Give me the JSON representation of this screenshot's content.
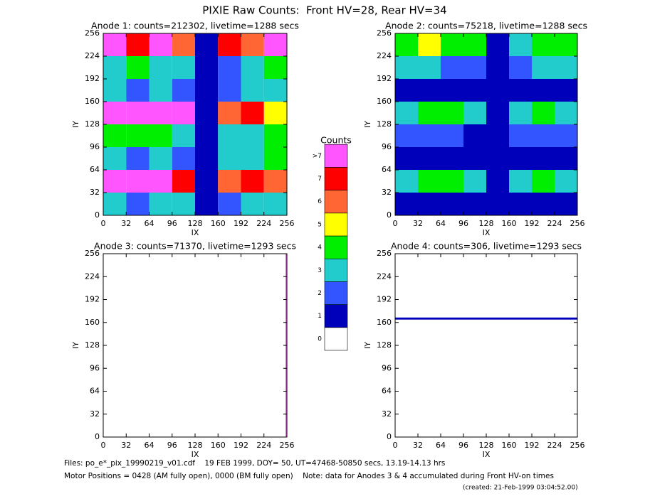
{
  "title": "PIXIE Raw Counts:  Front HV=28, Rear HV=34",
  "chart_data": [
    {
      "type": "heatmap",
      "title": "Anode 1: counts=212302, livetime=1288 secs",
      "xlabel": "IX",
      "ylabel": "IY",
      "xlim": [
        0,
        256
      ],
      "ylim": [
        0,
        256
      ],
      "xticks": [
        0,
        32,
        64,
        96,
        128,
        160,
        192,
        224,
        256
      ],
      "yticks": [
        0,
        32,
        64,
        96,
        128,
        160,
        192,
        224,
        256
      ],
      "xbins": [
        0,
        32,
        64,
        96,
        128,
        160,
        192,
        224,
        256
      ],
      "ybins": [
        0,
        32,
        64,
        96,
        128,
        160,
        192,
        224,
        256
      ],
      "z": [
        [
          3,
          2,
          3,
          3,
          1,
          2,
          3,
          3
        ],
        [
          8,
          8,
          8,
          7,
          1,
          6,
          7,
          6
        ],
        [
          3,
          2,
          3,
          2,
          1,
          3,
          3,
          4
        ],
        [
          4,
          4,
          4,
          3,
          1,
          3,
          3,
          4
        ],
        [
          8,
          8,
          8,
          8,
          1,
          6,
          7,
          5
        ],
        [
          3,
          2,
          3,
          2,
          1,
          2,
          3,
          3
        ],
        [
          3,
          4,
          3,
          3,
          1,
          2,
          3,
          4
        ],
        [
          8,
          7,
          8,
          6,
          1,
          7,
          6,
          8
        ]
      ]
    },
    {
      "type": "heatmap",
      "title": "Anode 2: counts=75218, livetime=1288 secs",
      "xlabel": "IX",
      "ylabel": "IY",
      "xlim": [
        0,
        256
      ],
      "ylim": [
        0,
        256
      ],
      "xticks": [
        0,
        32,
        64,
        96,
        128,
        160,
        192,
        224,
        256
      ],
      "yticks": [
        0,
        32,
        64,
        96,
        128,
        160,
        192,
        224,
        256
      ],
      "xbins": [
        0,
        32,
        64,
        96,
        128,
        160,
        192,
        224,
        256
      ],
      "ybins": [
        0,
        32,
        64,
        96,
        128,
        160,
        192,
        224,
        256
      ],
      "z": [
        [
          1,
          1,
          1,
          1,
          1,
          1,
          1,
          1
        ],
        [
          3,
          4,
          4,
          3,
          1,
          3,
          4,
          3
        ],
        [
          1,
          1,
          1,
          1,
          1,
          1,
          1,
          1
        ],
        [
          2,
          2,
          2,
          1,
          1,
          2,
          2,
          2
        ],
        [
          3,
          4,
          4,
          3,
          1,
          3,
          4,
          3
        ],
        [
          1,
          1,
          1,
          1,
          1,
          1,
          1,
          1
        ],
        [
          3,
          3,
          2,
          2,
          1,
          2,
          3,
          3
        ],
        [
          4,
          5,
          4,
          4,
          1,
          3,
          4,
          4
        ]
      ]
    },
    {
      "type": "heatmap",
      "title": "Anode 3: counts=71370, livetime=1293 secs",
      "xlabel": "IX",
      "ylabel": "IY",
      "xlim": [
        0,
        256
      ],
      "ylim": [
        0,
        256
      ],
      "xticks": [
        0,
        32,
        64,
        96,
        128,
        160,
        192,
        224,
        256
      ],
      "yticks": [
        0,
        32,
        64,
        96,
        128,
        160,
        192,
        224,
        256
      ],
      "xbins": [
        0,
        254,
        256
      ],
      "ybins": [
        0,
        256
      ],
      "z": [
        [
          0,
          8
        ]
      ]
    },
    {
      "type": "heatmap",
      "title": "Anode 4: counts=306, livetime=1293 secs",
      "xlabel": "IX",
      "ylabel": "IY",
      "xlim": [
        0,
        256
      ],
      "ylim": [
        0,
        256
      ],
      "xticks": [
        0,
        32,
        64,
        96,
        128,
        160,
        192,
        224,
        256
      ],
      "yticks": [
        0,
        32,
        64,
        96,
        128,
        160,
        192,
        224,
        256
      ],
      "xbins": [
        0,
        256
      ],
      "ybins": [
        0,
        164,
        167,
        256
      ],
      "z": [
        [
          0
        ],
        [
          1
        ],
        [
          0
        ]
      ]
    }
  ],
  "colorbar": {
    "title": "Counts",
    "ticks": [
      0,
      1,
      2,
      3,
      4,
      5,
      6,
      7,
      {
        "value": 8,
        "label": ">7"
      }
    ],
    "colors": [
      "#ffffff",
      "#0000bb",
      "#3355ff",
      "#22cccc",
      "#00ee00",
      "#ffff00",
      "#ff6633",
      "#ff0000",
      "#ff55ff"
    ]
  },
  "footer": {
    "files": "Files: po_e*_pix_19990219_v01.cdf    19 FEB 1999, DOY= 50, UT=47468-50850 secs, 13.19-14.13 hrs",
    "motor": "Motor Positions = 0428 (AM fully open), 0000 (BM fully open)    Note: data for Anodes 3 & 4 accumulated during Front HV-on times",
    "created": "(created: 21-Feb-1999 03:04:52.00)"
  }
}
